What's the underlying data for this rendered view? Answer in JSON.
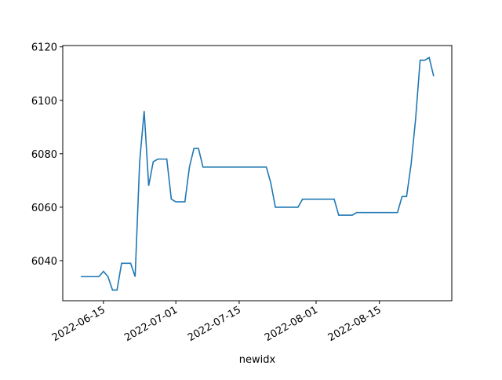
{
  "chart_data": {
    "type": "line",
    "xlabel": "newidx",
    "x": [
      "2022-06-10",
      "2022-06-11",
      "2022-06-12",
      "2022-06-13",
      "2022-06-14",
      "2022-06-15",
      "2022-06-16",
      "2022-06-17",
      "2022-06-18",
      "2022-06-19",
      "2022-06-20",
      "2022-06-21",
      "2022-06-22",
      "2022-06-23",
      "2022-06-24",
      "2022-06-25",
      "2022-06-26",
      "2022-06-27",
      "2022-06-28",
      "2022-06-29",
      "2022-06-30",
      "2022-07-01",
      "2022-07-02",
      "2022-07-03",
      "2022-07-04",
      "2022-07-05",
      "2022-07-06",
      "2022-07-07",
      "2022-07-08",
      "2022-07-09",
      "2022-07-10",
      "2022-07-11",
      "2022-07-12",
      "2022-07-13",
      "2022-07-14",
      "2022-07-15",
      "2022-07-16",
      "2022-07-17",
      "2022-07-18",
      "2022-07-19",
      "2022-07-20",
      "2022-07-21",
      "2022-07-22",
      "2022-07-23",
      "2022-07-24",
      "2022-07-25",
      "2022-07-26",
      "2022-07-27",
      "2022-07-28",
      "2022-07-29",
      "2022-07-30",
      "2022-07-31",
      "2022-08-01",
      "2022-08-02",
      "2022-08-03",
      "2022-08-04",
      "2022-08-05",
      "2022-08-06",
      "2022-08-07",
      "2022-08-08",
      "2022-08-09",
      "2022-08-10",
      "2022-08-11",
      "2022-08-12",
      "2022-08-13",
      "2022-08-14",
      "2022-08-15",
      "2022-08-16",
      "2022-08-17",
      "2022-08-18",
      "2022-08-19",
      "2022-08-20",
      "2022-08-21",
      "2022-08-22",
      "2022-08-23",
      "2022-08-24",
      "2022-08-25",
      "2022-08-26",
      "2022-08-27"
    ],
    "values": [
      6034,
      6034,
      6034,
      6034,
      6034,
      6036,
      6034,
      6029,
      6029,
      6039,
      6039,
      6039,
      6034,
      6077,
      6096,
      6068,
      6077,
      6078,
      6078,
      6078,
      6063,
      6062,
      6062,
      6062,
      6075,
      6082,
      6082,
      6075,
      6075,
      6075,
      6075,
      6075,
      6075,
      6075,
      6075,
      6075,
      6075,
      6075,
      6075,
      6075,
      6075,
      6075,
      6069,
      6060,
      6060,
      6060,
      6060,
      6060,
      6060,
      6063,
      6063,
      6063,
      6063,
      6063,
      6063,
      6063,
      6063,
      6057,
      6057,
      6057,
      6057,
      6058,
      6058,
      6058,
      6058,
      6058,
      6058,
      6058,
      6058,
      6058,
      6058,
      6064,
      6064,
      6076,
      6093,
      6115,
      6115,
      6116,
      6109
    ],
    "color": "#1f77b4",
    "xlim": [
      "2022-06-06",
      "2022-08-31"
    ],
    "xticks": [
      "2022-06-15",
      "2022-07-01",
      "2022-07-15",
      "2022-08-01",
      "2022-08-15"
    ],
    "ylim": [
      6025,
      6120.5
    ],
    "yticks": [
      6040,
      6060,
      6080,
      6100,
      6120
    ]
  }
}
